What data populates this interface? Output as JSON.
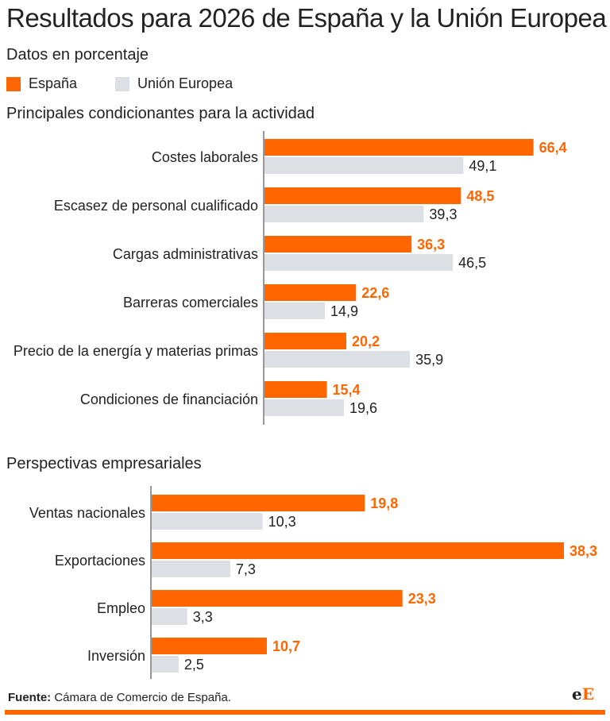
{
  "title": "Resultados para 2026 de España y la Unión Europea",
  "subtitle": "Datos en porcentaje",
  "colors": {
    "spain": "#ff6600",
    "eu": "#dcdfe3"
  },
  "legend": [
    "España",
    "Unión Europea"
  ],
  "source_label": "Fuente:",
  "source": "Cámara de Comercio de España.",
  "logo": "eE",
  "chart_data": [
    {
      "type": "bar",
      "orientation": "horizontal",
      "title": "Principales condicionantes para la actividad",
      "categories": [
        "Costes laborales",
        "Escasez de personal cualificado",
        "Cargas administrativas",
        "Barreras comerciales",
        "Precio de la energía y materias primas",
        "Condiciones de financiación"
      ],
      "series": [
        {
          "name": "España",
          "values": [
            66.4,
            48.5,
            36.3,
            22.6,
            20.2,
            15.4
          ],
          "labels": [
            "66,4",
            "48,5",
            "36,3",
            "22,6",
            "20,2",
            "15,4"
          ]
        },
        {
          "name": "Unión Europea",
          "values": [
            49.1,
            39.3,
            46.5,
            14.9,
            35.9,
            19.6
          ],
          "labels": [
            "49,1",
            "39,3",
            "46,5",
            "14,9",
            "35,9",
            "19,6"
          ]
        }
      ]
    },
    {
      "type": "bar",
      "orientation": "horizontal",
      "title": "Perspectivas empresariales",
      "categories": [
        "Ventas nacionales",
        "Exportaciones",
        "Empleo",
        "Inversión"
      ],
      "series": [
        {
          "name": "España",
          "values": [
            19.8,
            38.3,
            23.3,
            10.7
          ],
          "labels": [
            "19,8",
            "38,3",
            "23,3",
            "10,7"
          ]
        },
        {
          "name": "Unión Europea",
          "values": [
            10.3,
            7.3,
            3.3,
            2.5
          ],
          "labels": [
            "10,3",
            "7,3",
            "3,3",
            "2,5"
          ]
        }
      ]
    }
  ]
}
